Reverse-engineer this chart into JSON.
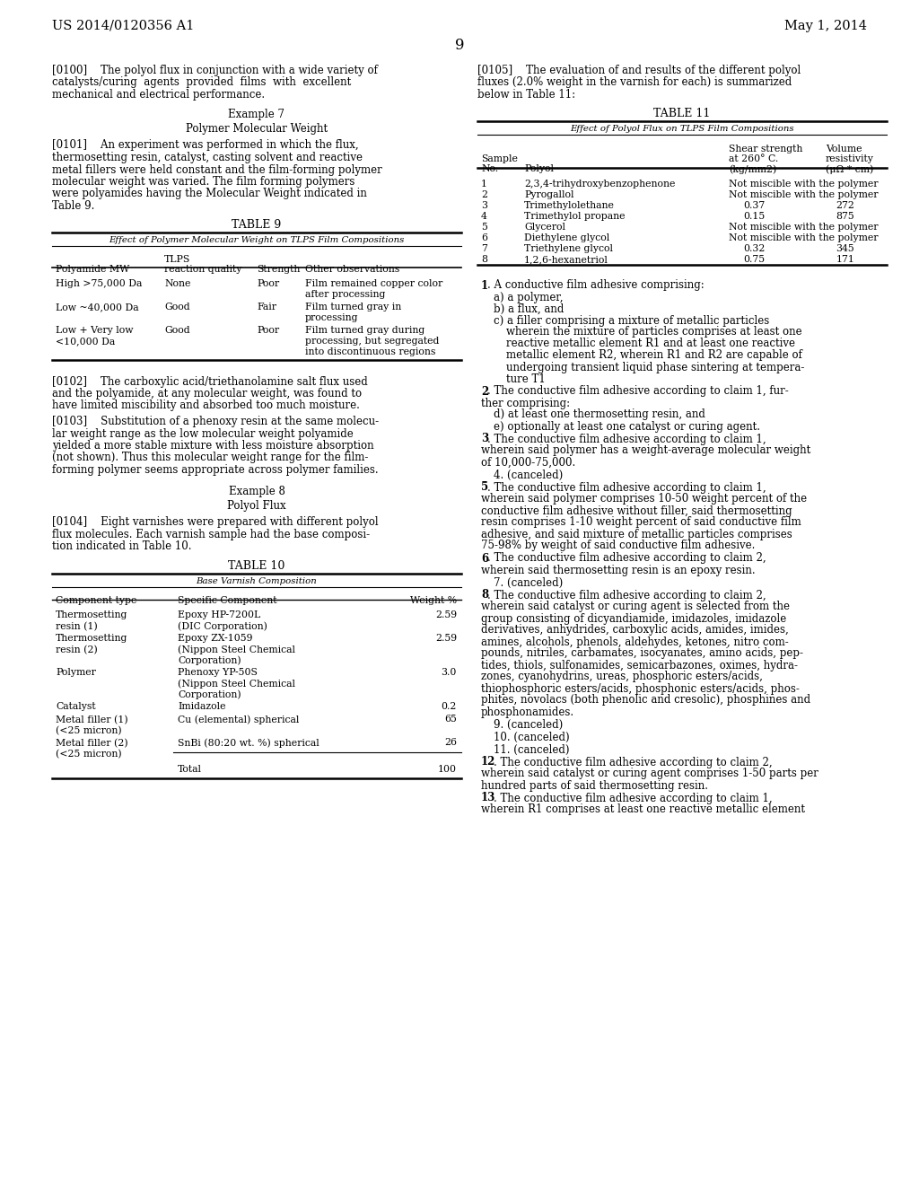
{
  "bg_color": "#ffffff",
  "header_left": "US 2014/0120356 A1",
  "header_right": "May 1, 2014",
  "page_number": "9"
}
